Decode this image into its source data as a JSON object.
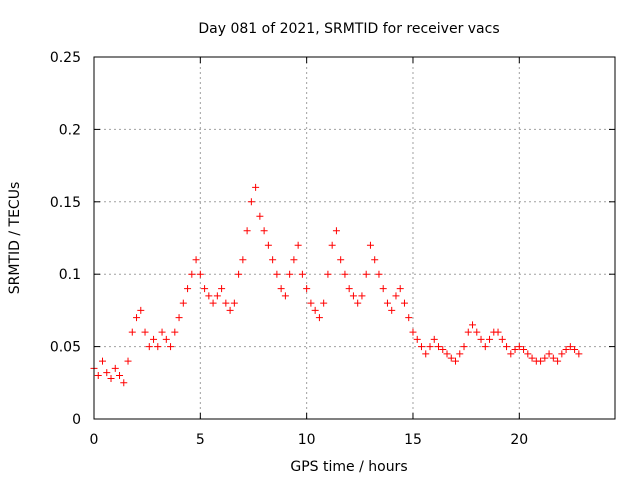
{
  "chart_data": {
    "type": "scatter",
    "title": "Day 081 of 2021, SRMTID for receiver vacs",
    "xlabel": "GPS time / hours",
    "ylabel": "SRMTID / TECUs",
    "xlim": [
      0,
      24.5
    ],
    "ylim": [
      0,
      0.25
    ],
    "xticks": [
      {
        "value": 0,
        "label": "0"
      },
      {
        "value": 5,
        "label": "5"
      },
      {
        "value": 10,
        "label": "10"
      },
      {
        "value": 15,
        "label": "15"
      },
      {
        "value": 20,
        "label": "20"
      }
    ],
    "yticks": [
      {
        "value": 0,
        "label": "0"
      },
      {
        "value": 0.05,
        "label": "0.05"
      },
      {
        "value": 0.1,
        "label": "0.1"
      },
      {
        "value": 0.15,
        "label": "0.15"
      },
      {
        "value": 0.2,
        "label": "0.2"
      },
      {
        "value": 0.25,
        "label": "0.25"
      }
    ],
    "grid": true,
    "marker": "+",
    "color": "#ff0000",
    "series": [
      {
        "name": "SRMTID",
        "x": [
          0.0,
          0.2,
          0.4,
          0.6,
          0.8,
          1.0,
          1.2,
          1.4,
          1.6,
          1.8,
          2.0,
          2.2,
          2.4,
          2.6,
          2.8,
          3.0,
          3.2,
          3.4,
          3.6,
          3.8,
          4.0,
          4.2,
          4.4,
          4.6,
          4.8,
          5.0,
          5.2,
          5.4,
          5.6,
          5.8,
          6.0,
          6.2,
          6.4,
          6.6,
          6.8,
          7.0,
          7.2,
          7.4,
          7.6,
          7.8,
          8.0,
          8.2,
          8.4,
          8.6,
          8.8,
          9.0,
          9.2,
          9.4,
          9.6,
          9.8,
          10.0,
          10.2,
          10.4,
          10.6,
          10.8,
          11.0,
          11.2,
          11.4,
          11.6,
          11.8,
          12.0,
          12.2,
          12.4,
          12.6,
          12.8,
          13.0,
          13.2,
          13.4,
          13.6,
          13.8,
          14.0,
          14.2,
          14.4,
          14.6,
          14.8,
          15.0,
          15.2,
          15.4,
          15.6,
          15.8,
          16.0,
          16.2,
          16.4,
          16.6,
          16.8,
          17.0,
          17.2,
          17.4,
          17.6,
          17.8,
          18.0,
          18.2,
          18.4,
          18.6,
          18.8,
          19.0,
          19.2,
          19.4,
          19.6,
          19.8,
          20.0,
          20.2,
          20.4,
          20.6,
          20.8,
          21.0,
          21.2,
          21.4,
          21.6,
          21.8,
          22.0,
          22.2,
          22.4,
          22.6,
          22.8
        ],
        "y": [
          0.035,
          0.03,
          0.04,
          0.032,
          0.028,
          0.035,
          0.03,
          0.025,
          0.04,
          0.06,
          0.07,
          0.075,
          0.06,
          0.05,
          0.055,
          0.05,
          0.06,
          0.055,
          0.05,
          0.06,
          0.07,
          0.08,
          0.09,
          0.1,
          0.11,
          0.1,
          0.09,
          0.085,
          0.08,
          0.085,
          0.09,
          0.08,
          0.075,
          0.08,
          0.1,
          0.11,
          0.13,
          0.15,
          0.16,
          0.14,
          0.13,
          0.12,
          0.11,
          0.1,
          0.09,
          0.085,
          0.1,
          0.11,
          0.12,
          0.1,
          0.09,
          0.08,
          0.075,
          0.07,
          0.08,
          0.1,
          0.12,
          0.13,
          0.11,
          0.1,
          0.09,
          0.085,
          0.08,
          0.085,
          0.1,
          0.12,
          0.11,
          0.1,
          0.09,
          0.08,
          0.075,
          0.085,
          0.09,
          0.08,
          0.07,
          0.06,
          0.055,
          0.05,
          0.045,
          0.05,
          0.055,
          0.05,
          0.048,
          0.045,
          0.042,
          0.04,
          0.045,
          0.05,
          0.06,
          0.065,
          0.06,
          0.055,
          0.05,
          0.055,
          0.06,
          0.06,
          0.055,
          0.05,
          0.045,
          0.048,
          0.05,
          0.048,
          0.045,
          0.042,
          0.04,
          0.04,
          0.042,
          0.045,
          0.042,
          0.04,
          0.045,
          0.048,
          0.05,
          0.048,
          0.045
        ]
      }
    ]
  }
}
